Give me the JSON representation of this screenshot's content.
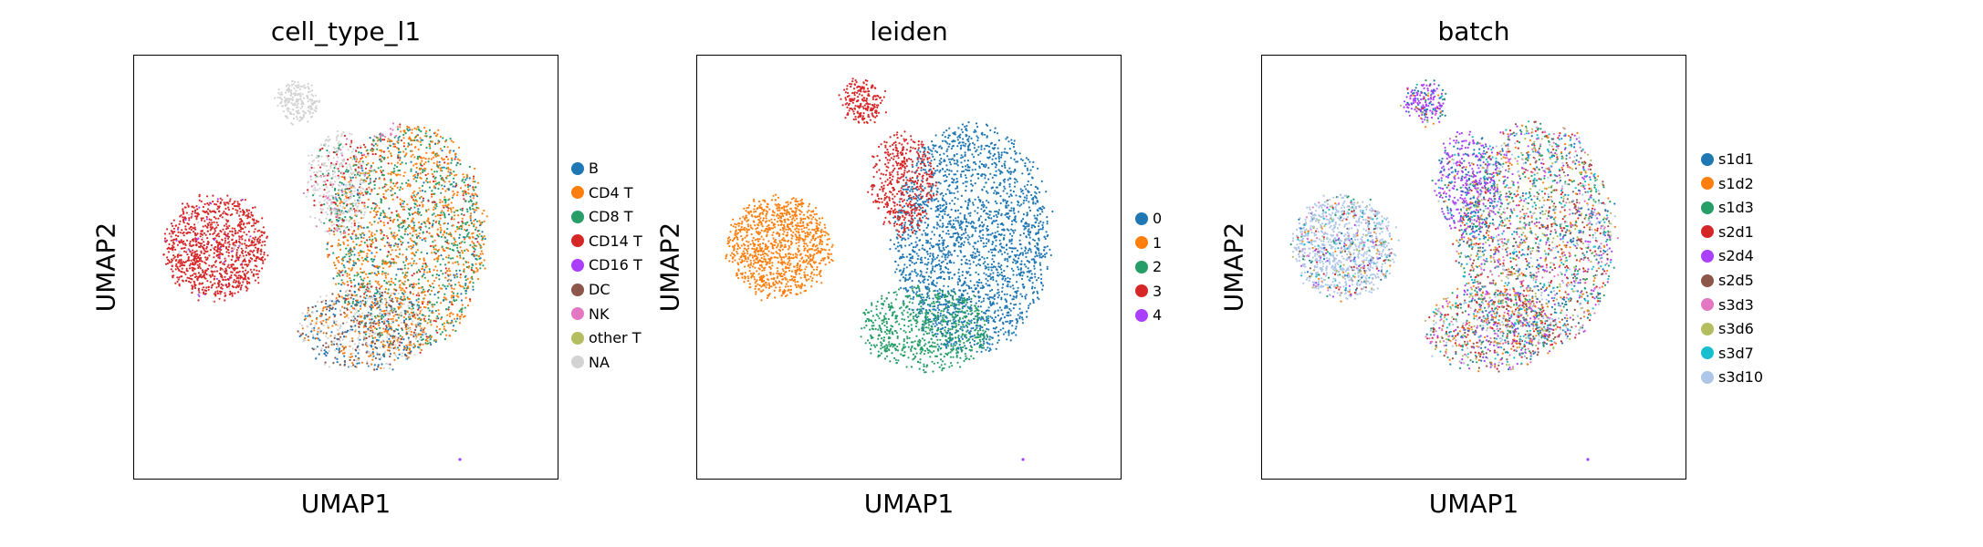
{
  "chart_data": [
    {
      "type": "scatter",
      "title": "cell_type_l1",
      "xlabel": "UMAP1",
      "ylabel": "UMAP2",
      "grid": false,
      "legend_position": "right",
      "ticks": false,
      "series": [
        {
          "name": "B",
          "color": "#1f77b4"
        },
        {
          "name": "CD4 T",
          "color": "#ff7f0e"
        },
        {
          "name": "CD8 T",
          "color": "#279e68"
        },
        {
          "name": "CD14 T",
          "color": "#d62728"
        },
        {
          "name": "CD16 T",
          "color": "#aa40fc"
        },
        {
          "name": "DC",
          "color": "#8c564b"
        },
        {
          "name": "NK",
          "color": "#e377c2"
        },
        {
          "name": "other T",
          "color": "#b5bd61"
        },
        {
          "name": "NA",
          "color": "#d3d3d3"
        }
      ]
    },
    {
      "type": "scatter",
      "title": "leiden",
      "xlabel": "UMAP1",
      "ylabel": "UMAP2",
      "grid": false,
      "legend_position": "right",
      "ticks": false,
      "series": [
        {
          "name": "0",
          "color": "#1f77b4"
        },
        {
          "name": "1",
          "color": "#ff7f0e"
        },
        {
          "name": "2",
          "color": "#279e68"
        },
        {
          "name": "3",
          "color": "#d62728"
        },
        {
          "name": "4",
          "color": "#aa40fc"
        }
      ]
    },
    {
      "type": "scatter",
      "title": "batch",
      "xlabel": "UMAP1",
      "ylabel": "UMAP2",
      "grid": false,
      "legend_position": "right",
      "ticks": false,
      "series": [
        {
          "name": "s1d1",
          "color": "#1f77b4"
        },
        {
          "name": "s1d2",
          "color": "#ff7f0e"
        },
        {
          "name": "s1d3",
          "color": "#279e68"
        },
        {
          "name": "s2d1",
          "color": "#d62728"
        },
        {
          "name": "s2d4",
          "color": "#aa40fc"
        },
        {
          "name": "s2d5",
          "color": "#8c564b"
        },
        {
          "name": "s3d3",
          "color": "#e377c2"
        },
        {
          "name": "s3d6",
          "color": "#b5bd61"
        },
        {
          "name": "s3d7",
          "color": "#17becf"
        },
        {
          "name": "s3d10",
          "color": "#aec7e8"
        }
      ]
    }
  ]
}
